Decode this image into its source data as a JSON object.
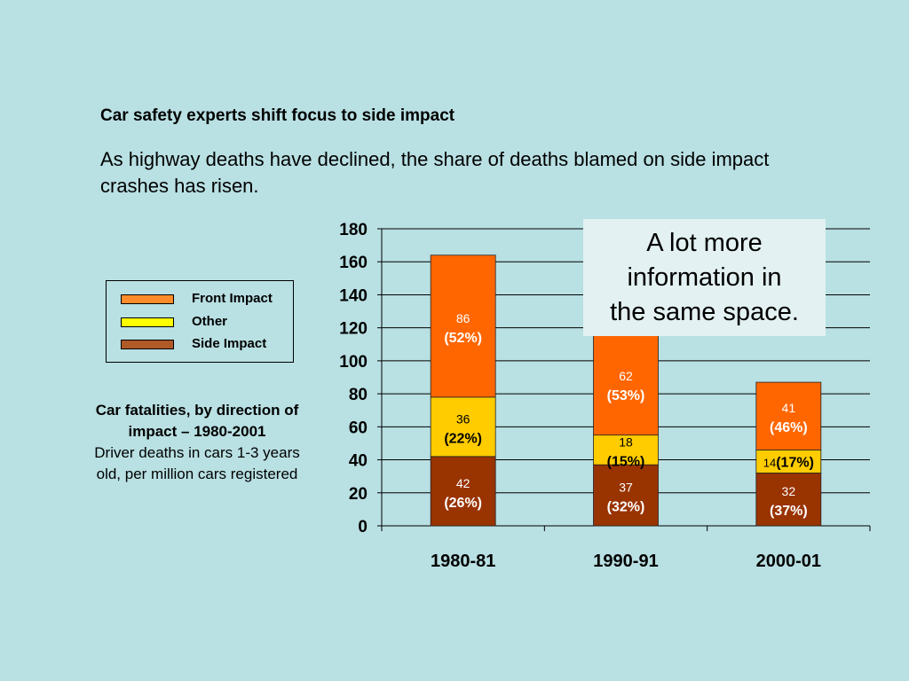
{
  "slide": {
    "title": "Car safety experts shift focus to side impact",
    "subtitle": "As highway deaths have declined, the share of deaths blamed on side impact crashes has risen.",
    "callout": "A lot more\ninformation in\nthe same space."
  },
  "legend": {
    "items": [
      {
        "label": "Front Impact",
        "color": "#ff6600",
        "swatch": "#ff8c2a"
      },
      {
        "label": "Other",
        "color": "#ffcc00",
        "swatch": "#ffff00"
      },
      {
        "label": "Side Impact",
        "color": "#993300",
        "swatch": "#b05a28"
      }
    ]
  },
  "caption": {
    "bold": "Car fatalities, by direction of impact – 1980-2001",
    "text": "Driver deaths in cars 1-3 years old, per million cars registered"
  },
  "chart_data": {
    "type": "bar",
    "stacked": true,
    "categories": [
      "1980-81",
      "1990-91",
      "2000-01"
    ],
    "ylim": [
      0,
      180
    ],
    "yticks": [
      0,
      20,
      40,
      60,
      80,
      100,
      120,
      140,
      160,
      180
    ],
    "grid": true,
    "legend_position": "left",
    "series": [
      {
        "name": "Side Impact",
        "color": "#993300",
        "values": [
          42,
          37,
          32
        ],
        "labels": [
          "42",
          "37",
          "32"
        ],
        "percents": [
          "(26%)",
          "(32%)",
          "(37%)"
        ]
      },
      {
        "name": "Other",
        "color": "#ffcc00",
        "values": [
          36,
          18,
          14
        ],
        "labels": [
          "36",
          "18",
          "14"
        ],
        "percents": [
          "(22%)",
          "(15%)",
          "(17%)"
        ]
      },
      {
        "name": "Front Impact",
        "color": "#ff6600",
        "values": [
          86,
          62,
          41
        ],
        "labels": [
          "86",
          "62",
          "41"
        ],
        "percents": [
          "(52%)",
          "(53%)",
          "(46%)"
        ]
      }
    ]
  }
}
